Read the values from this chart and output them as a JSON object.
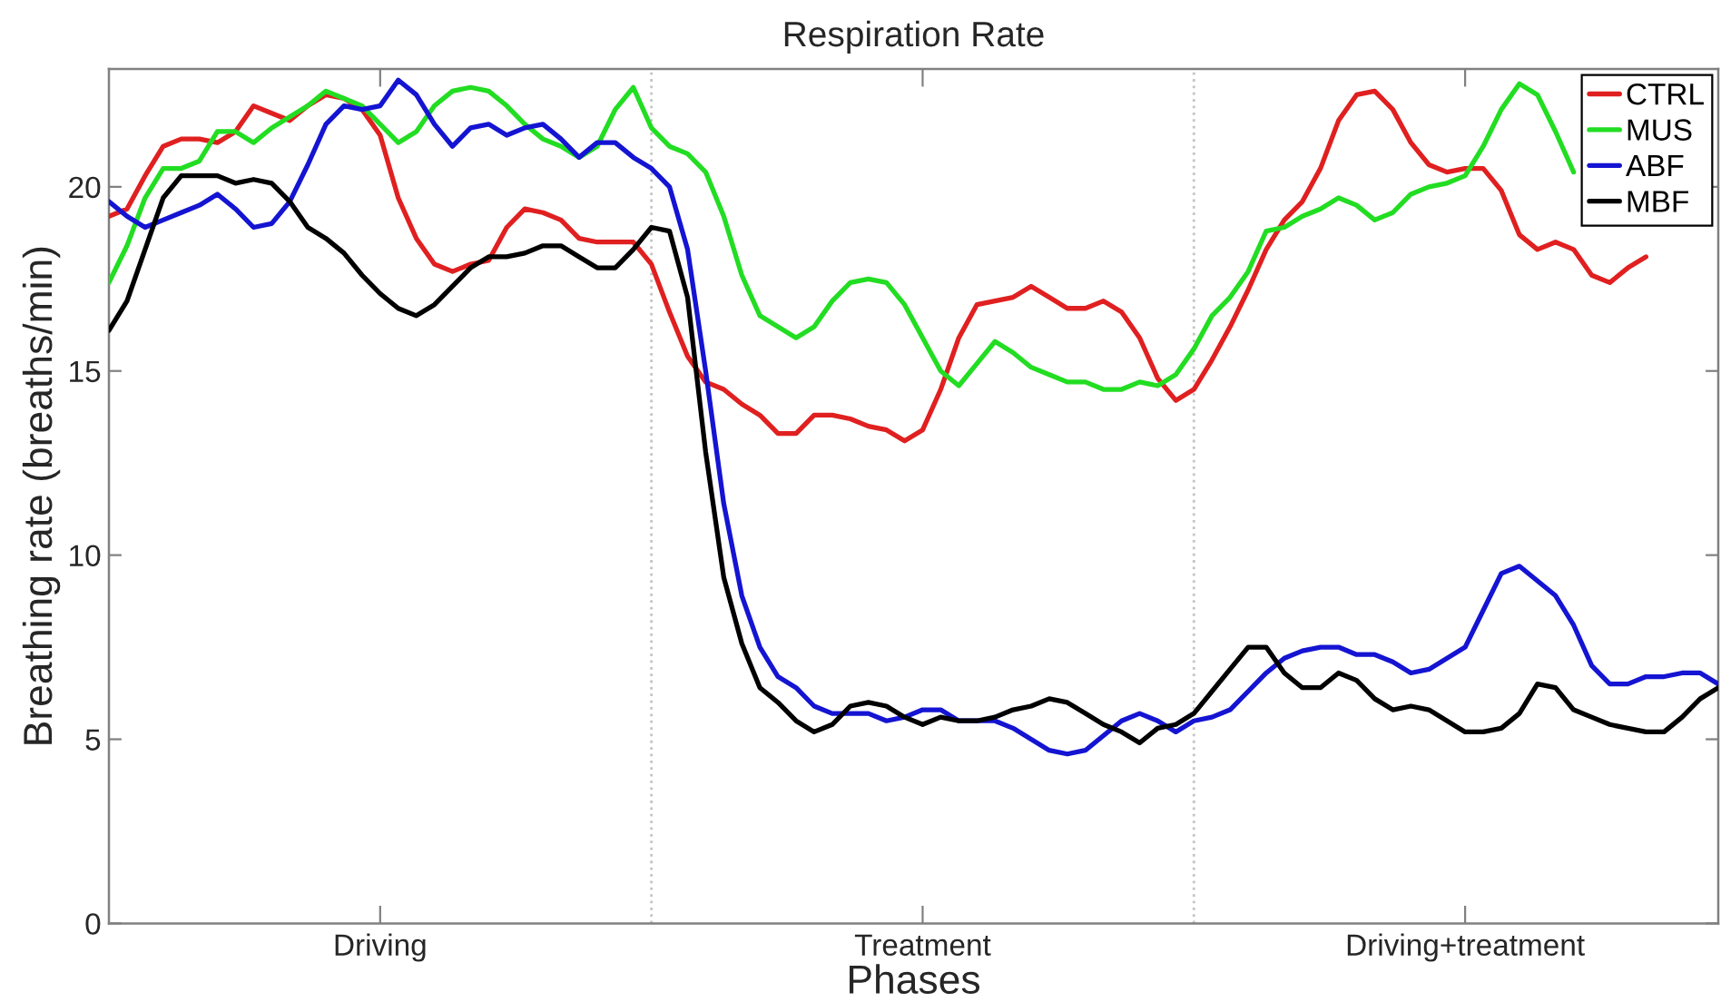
{
  "chart_data": {
    "type": "line",
    "title": "Respiration Rate",
    "xlabel": "Phases",
    "ylabel": "Breathing rate (breaths/min)",
    "categories": [
      null,
      null,
      null,
      null,
      null,
      null,
      null,
      null,
      null,
      null,
      null,
      null,
      null,
      null,
      null,
      "Driving",
      null,
      null,
      null,
      null,
      null,
      null,
      null,
      null,
      null,
      null,
      null,
      null,
      null,
      null,
      null,
      null,
      null,
      null,
      null,
      null,
      null,
      null,
      null,
      null,
      null,
      null,
      null,
      null,
      null,
      "Treatment",
      null,
      null,
      null,
      null,
      null,
      null,
      null,
      null,
      null,
      null,
      null,
      null,
      null,
      null,
      null,
      null,
      null,
      null,
      null,
      null,
      null,
      null,
      null,
      null,
      null,
      null,
      null,
      null,
      null,
      "Driving+treatment",
      null,
      null,
      null,
      null,
      null,
      null,
      null,
      null,
      null,
      null,
      null,
      null,
      null,
      null
    ],
    "ylim": [
      0,
      23.2
    ],
    "yticks": [
      0,
      5,
      10,
      15,
      20
    ],
    "legend": "top right",
    "grid": "x",
    "line_style": "solid",
    "series": [
      {
        "name": "CTRL",
        "color": "#e02020",
        "values": [
          19.2,
          19.4,
          20.3,
          21.1,
          21.3,
          21.3,
          21.2,
          21.5,
          22.2,
          22.0,
          21.8,
          22.2,
          22.5,
          22.4,
          22.1,
          21.4,
          19.7,
          18.6,
          17.9,
          17.7,
          17.9,
          18.0,
          18.9,
          19.4,
          19.3,
          19.1,
          18.6,
          18.5,
          18.5,
          18.5,
          17.9,
          16.6,
          15.4,
          14.7,
          14.5,
          14.1,
          13.8,
          13.3,
          13.3,
          13.8,
          13.8,
          13.7,
          13.5,
          13.4,
          13.1,
          13.4,
          14.5,
          15.9,
          16.8,
          16.9,
          17.0,
          17.3,
          17.0,
          16.7,
          16.7,
          16.9,
          16.6,
          15.9,
          14.8,
          14.2,
          14.5,
          15.3,
          16.2,
          17.2,
          18.3,
          19.1,
          19.6,
          20.5,
          21.8,
          22.5,
          22.6,
          22.1,
          21.2,
          20.6,
          20.4,
          20.5,
          20.5,
          19.9,
          18.7,
          18.3,
          18.5,
          18.3,
          17.6,
          17.4,
          17.8,
          18.1,
          null,
          null,
          null,
          null
        ]
      },
      {
        "name": "MUS",
        "color": "#22dd22",
        "values": [
          17.4,
          18.4,
          19.7,
          20.5,
          20.5,
          20.7,
          21.5,
          21.5,
          21.2,
          21.6,
          21.9,
          22.2,
          22.6,
          22.4,
          22.2,
          21.7,
          21.2,
          21.5,
          22.2,
          22.6,
          22.7,
          22.6,
          22.2,
          21.7,
          21.3,
          21.1,
          20.8,
          21.1,
          22.1,
          22.7,
          21.6,
          21.1,
          20.9,
          20.4,
          19.2,
          17.6,
          16.5,
          16.2,
          15.9,
          16.2,
          16.9,
          17.4,
          17.5,
          17.4,
          16.8,
          15.9,
          15.0,
          14.6,
          15.2,
          15.8,
          15.5,
          15.1,
          14.9,
          14.7,
          14.7,
          14.5,
          14.5,
          14.7,
          14.6,
          14.9,
          15.6,
          16.5,
          17.0,
          17.7,
          18.8,
          18.9,
          19.2,
          19.4,
          19.7,
          19.5,
          19.1,
          19.3,
          19.8,
          20.0,
          20.1,
          20.3,
          21.1,
          22.1,
          22.8,
          22.5,
          21.5,
          20.4,
          null,
          null,
          null,
          null,
          null,
          null,
          null,
          null
        ]
      },
      {
        "name": "ABF",
        "color": "#1414d2",
        "values": [
          19.6,
          19.2,
          18.9,
          19.1,
          19.3,
          19.5,
          19.8,
          19.4,
          18.9,
          19.0,
          19.6,
          20.6,
          21.7,
          22.2,
          22.1,
          22.2,
          22.9,
          22.5,
          21.7,
          21.1,
          21.6,
          21.7,
          21.4,
          21.6,
          21.7,
          21.3,
          20.8,
          21.2,
          21.2,
          20.8,
          20.5,
          20.0,
          18.3,
          15.0,
          11.4,
          8.9,
          7.5,
          6.7,
          6.4,
          5.9,
          5.7,
          5.7,
          5.7,
          5.5,
          5.6,
          5.8,
          5.8,
          5.5,
          5.5,
          5.5,
          5.3,
          5.0,
          4.7,
          4.6,
          4.7,
          5.1,
          5.5,
          5.7,
          5.5,
          5.2,
          5.5,
          5.6,
          5.8,
          6.3,
          6.8,
          7.2,
          7.4,
          7.5,
          7.5,
          7.3,
          7.3,
          7.1,
          6.8,
          6.9,
          7.2,
          7.5,
          8.5,
          9.5,
          9.7,
          9.3,
          8.9,
          8.1,
          7.0,
          6.5,
          6.5,
          6.7,
          6.7,
          6.8,
          6.8,
          6.5
        ]
      },
      {
        "name": "MBF",
        "color": "#000000",
        "values": [
          16.1,
          16.9,
          18.3,
          19.7,
          20.3,
          20.3,
          20.3,
          20.1,
          20.2,
          20.1,
          19.6,
          18.9,
          18.6,
          18.2,
          17.6,
          17.1,
          16.7,
          16.5,
          16.8,
          17.3,
          17.8,
          18.1,
          18.1,
          18.2,
          18.4,
          18.4,
          18.1,
          17.8,
          17.8,
          18.3,
          18.9,
          18.8,
          17.0,
          12.8,
          9.4,
          7.6,
          6.4,
          6.0,
          5.5,
          5.2,
          5.4,
          5.9,
          6.0,
          5.9,
          5.6,
          5.4,
          5.6,
          5.5,
          5.5,
          5.6,
          5.8,
          5.9,
          6.1,
          6.0,
          5.7,
          5.4,
          5.2,
          4.9,
          5.3,
          5.4,
          5.7,
          6.3,
          6.9,
          7.5,
          7.5,
          6.8,
          6.4,
          6.4,
          6.8,
          6.6,
          6.1,
          5.8,
          5.9,
          5.8,
          5.5,
          5.2,
          5.2,
          5.3,
          5.7,
          6.5,
          6.4,
          5.8,
          5.6,
          5.4,
          5.3,
          5.2,
          5.2,
          5.6,
          6.1,
          6.4
        ]
      }
    ]
  }
}
